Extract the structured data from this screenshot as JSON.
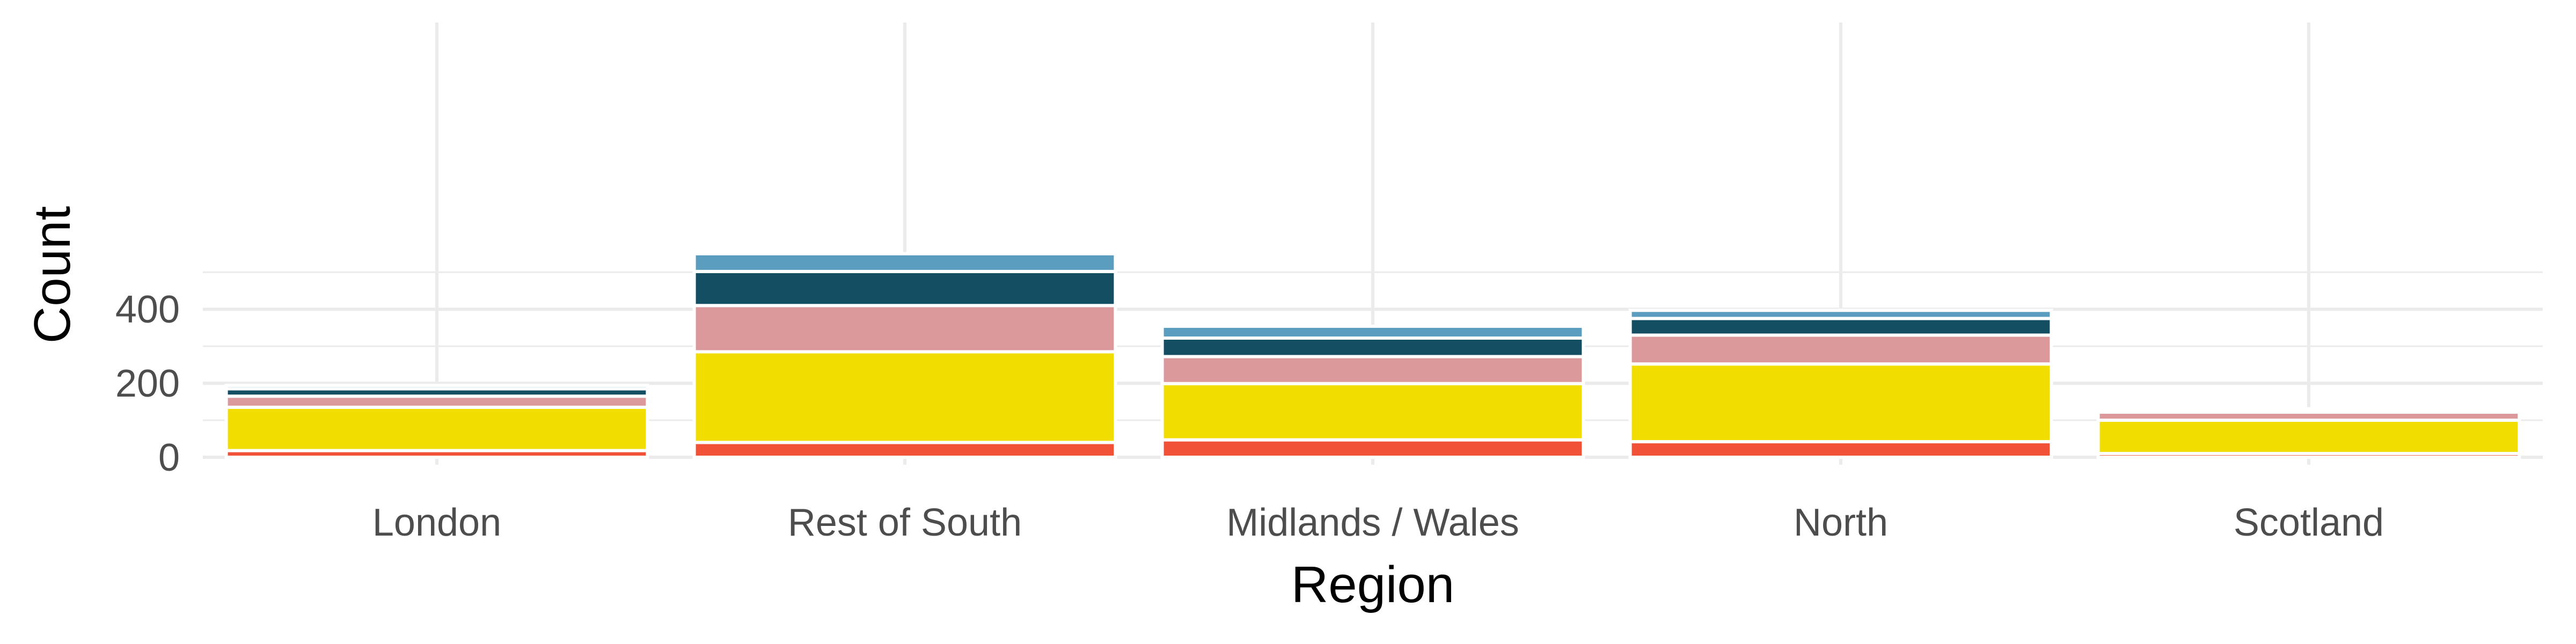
{
  "chart_data": {
    "type": "bar",
    "stacked": true,
    "title": "",
    "xlabel": "Region",
    "ylabel": "Count",
    "categories": [
      "London",
      "Rest of South",
      "Midlands / Wales",
      "North",
      "Scotland"
    ],
    "ylim": [
      0,
      580
    ],
    "yticks": [
      0,
      200,
      400
    ],
    "grid": true,
    "legend": "none",
    "series": [
      {
        "color": "#f05137",
        "values": [
          18,
          40,
          47,
          42,
          10
        ]
      },
      {
        "color": "#f2dd00",
        "values": [
          117,
          245,
          152,
          210,
          90
        ]
      },
      {
        "color": "#db999c",
        "values": [
          30,
          125,
          73,
          78,
          22
        ]
      },
      {
        "color": "#134e63",
        "values": [
          20,
          92,
          50,
          45,
          6
        ]
      },
      {
        "color": "#5a9dbf",
        "values": [
          9,
          48,
          32,
          22,
          3
        ]
      }
    ]
  }
}
